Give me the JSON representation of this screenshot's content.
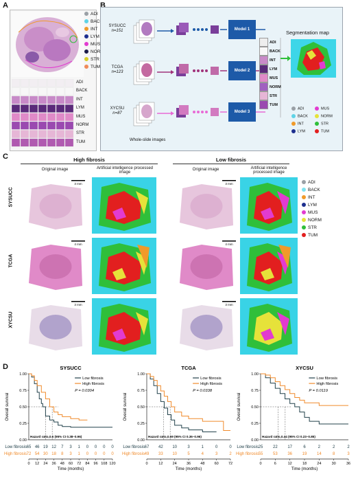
{
  "panels": {
    "a": "A",
    "b": "B",
    "c": "C",
    "d": "D"
  },
  "panelA": {
    "legend": [
      {
        "label": "ADI",
        "color": "#9aa0a6"
      },
      {
        "label": "BACK",
        "color": "#5fd3e6"
      },
      {
        "label": "INT",
        "color": "#f09a2a"
      },
      {
        "label": "LYM",
        "color": "#1d2f8f"
      },
      {
        "label": "MUS",
        "color": "#e23bd0"
      },
      {
        "label": "NORM",
        "color": "#1d1d4a"
      },
      {
        "label": "STR",
        "color": "#d9cf2a"
      },
      {
        "label": "TUM",
        "color": "#f08a5a"
      }
    ],
    "tile_labels": [
      "ADI",
      "BACK",
      "INT",
      "LYM",
      "MUS",
      "NORM",
      "STR",
      "TUM"
    ]
  },
  "panelB": {
    "cohorts": [
      {
        "name": "SYSUCC",
        "n": "n=151",
        "model": "Model 1"
      },
      {
        "name": "TCGA",
        "n": "n=123",
        "model": "Model 2"
      },
      {
        "name": "XYCSU",
        "n": "n=87",
        "model": "Model 3"
      }
    ],
    "wsi_label": "Whole-slide images",
    "seg_title": "Segmentation map",
    "seg_tiles": [
      "ADI",
      "BACK",
      "INT",
      "LYM",
      "MUS",
      "NORM",
      "STR",
      "TUM"
    ],
    "seg_legend": [
      {
        "label": "ADI",
        "color": "#9aa0a6"
      },
      {
        "label": "MUS",
        "color": "#e23bd0"
      },
      {
        "label": "BACK",
        "color": "#5fd3e6"
      },
      {
        "label": "NORM",
        "color": "#e6e23a"
      },
      {
        "label": "INT",
        "color": "#f09a2a"
      },
      {
        "label": "STR",
        "color": "#2fbf3a"
      },
      {
        "label": "LYM",
        "color": "#1d2f8f"
      },
      {
        "label": "TUM",
        "color": "#e21f1f"
      }
    ]
  },
  "panelC": {
    "high_title": "High fibrosis",
    "low_title": "Low fibrosis",
    "orig_label": "Original image",
    "ai_label": "Artificial intelligence processed image",
    "rows": [
      {
        "name": "SYSUCC",
        "scale_high": "3 mm",
        "scale_low": "3 mm"
      },
      {
        "name": "TCGA",
        "scale_high": "4 mm",
        "scale_low": "4 mm"
      },
      {
        "name": "XYCSU",
        "scale_high": "3 mm",
        "scale_low": "3 mm"
      }
    ],
    "legend": [
      {
        "label": "ADI",
        "color": "#9aa0a6"
      },
      {
        "label": "BACK",
        "color": "#7fe3f0"
      },
      {
        "label": "INT",
        "color": "#f09a2a"
      },
      {
        "label": "LYM",
        "color": "#1d2f8f"
      },
      {
        "label": "MUS",
        "color": "#e23bd0"
      },
      {
        "label": "NORM",
        "color": "#e6e23a"
      },
      {
        "label": "STR",
        "color": "#2fbf3a"
      },
      {
        "label": "TUM",
        "color": "#e21f1f"
      }
    ]
  },
  "chart_data": [
    {
      "type": "line",
      "title": "SYSUCC",
      "ylabel": "Overall survival",
      "xlabel": "Time (months)",
      "ylim": [
        0,
        1
      ],
      "xlim": [
        0,
        120
      ],
      "xticks": [
        "0",
        "12",
        "24",
        "36",
        "48",
        "60",
        "72",
        "84",
        "96",
        "108",
        "120"
      ],
      "yticks": [
        "0.00",
        "0.25",
        "0.50",
        "0.75",
        "1.00"
      ],
      "legend": [
        "Low fibrosis",
        "High fibrosis"
      ],
      "pvalue": "P = 0.0304",
      "hr": "Hazard ratio,0.6 (95% CI 0.38–0.96)",
      "series": [
        {
          "name": "Low fibrosis",
          "color": "#21404a",
          "x": [
            0,
            4,
            8,
            12,
            15,
            18,
            20,
            24,
            30,
            36,
            42,
            48,
            60,
            72,
            84,
            120
          ],
          "y": [
            1,
            0.95,
            0.85,
            0.72,
            0.62,
            0.55,
            0.5,
            0.36,
            0.3,
            0.27,
            0.22,
            0.2,
            0.19,
            0.19,
            0.19,
            0.19
          ]
        },
        {
          "name": "High fibrosis",
          "color": "#f08a2a",
          "x": [
            0,
            4,
            8,
            12,
            18,
            24,
            30,
            36,
            42,
            48,
            60,
            72,
            84
          ],
          "y": [
            1,
            0.97,
            0.9,
            0.82,
            0.72,
            0.62,
            0.5,
            0.42,
            0.38,
            0.35,
            0.32,
            0.3,
            0.3
          ]
        }
      ],
      "risk_rows": [
        {
          "label": "Low fibrosis",
          "values": [
            "65",
            "46",
            "19",
            "12",
            "7",
            "3",
            "1",
            "0",
            "0",
            "0",
            "0"
          ]
        },
        {
          "label": "High fibrosis",
          "values": [
            "72",
            "54",
            "30",
            "18",
            "8",
            "3",
            "1",
            "0",
            "0",
            "0",
            "0"
          ]
        }
      ]
    },
    {
      "type": "line",
      "title": "TCGA",
      "ylabel": "Overall survival",
      "xlabel": "Time (months)",
      "ylim": [
        0,
        1
      ],
      "xlim": [
        0,
        72
      ],
      "xticks": [
        "0",
        "12",
        "24",
        "36",
        "48",
        "60",
        "72"
      ],
      "yticks": [
        "0.00",
        "0.25",
        "0.50",
        "0.75",
        "1.00"
      ],
      "legend": [
        "Low fibrosis",
        "High fibrosis"
      ],
      "pvalue": "P = 0.0338",
      "hr": "Hazard ratio,0.59 (95% CI 0.36–0.96)",
      "series": [
        {
          "name": "Low fibrosis",
          "color": "#21404a",
          "x": [
            0,
            3,
            6,
            9,
            12,
            15,
            18,
            21,
            24,
            30,
            36,
            48,
            60
          ],
          "y": [
            1,
            0.92,
            0.82,
            0.7,
            0.58,
            0.48,
            0.38,
            0.3,
            0.22,
            0.18,
            0.15,
            0.12,
            0.12
          ]
        },
        {
          "name": "High fibrosis",
          "color": "#f08a2a",
          "x": [
            0,
            3,
            6,
            9,
            12,
            15,
            18,
            21,
            24,
            30,
            36,
            48,
            60,
            66,
            72
          ],
          "y": [
            1,
            0.96,
            0.9,
            0.82,
            0.74,
            0.66,
            0.58,
            0.5,
            0.42,
            0.36,
            0.32,
            0.28,
            0.28,
            0.14,
            0.14
          ]
        }
      ],
      "risk_rows": [
        {
          "label": "Low fibrosis",
          "values": [
            "67",
            "42",
            "10",
            "3",
            "1",
            "0",
            "0"
          ]
        },
        {
          "label": "High fibrosis",
          "values": [
            "49",
            "33",
            "10",
            "5",
            "4",
            "3",
            "2"
          ]
        }
      ]
    },
    {
      "type": "line",
      "title": "XYCSU",
      "ylabel": "Overall survival",
      "xlabel": "Time (months)",
      "ylim": [
        0,
        1
      ],
      "xlim": [
        0,
        36
      ],
      "xticks": [
        "0",
        "6",
        "12",
        "18",
        "24",
        "30",
        "36"
      ],
      "yticks": [
        "0.00",
        "0.25",
        "0.50",
        "0.75",
        "1.00"
      ],
      "legend": [
        "Low fibrosis",
        "High fibrosis"
      ],
      "pvalue": "P = 0.0119",
      "hr": "Hazard ratio,0.44 (95% CI 0.23–0.85)",
      "series": [
        {
          "name": "Low fibrosis",
          "color": "#21404a",
          "x": [
            0,
            2,
            4,
            6,
            8,
            10,
            12,
            14,
            16,
            18,
            20,
            24,
            30,
            36
          ],
          "y": [
            1,
            0.94,
            0.86,
            0.78,
            0.7,
            0.62,
            0.55,
            0.5,
            0.42,
            0.34,
            0.28,
            0.24,
            0.24,
            0.24
          ]
        },
        {
          "name": "High fibrosis",
          "color": "#f08a2a",
          "x": [
            0,
            2,
            4,
            6,
            8,
            10,
            12,
            14,
            16,
            18,
            24,
            30,
            36
          ],
          "y": [
            1,
            0.98,
            0.94,
            0.88,
            0.82,
            0.76,
            0.7,
            0.64,
            0.6,
            0.56,
            0.52,
            0.52,
            0.52
          ]
        }
      ],
      "risk_rows": [
        {
          "label": "Low fibrosis",
          "values": [
            "25",
            "22",
            "17",
            "6",
            "2",
            "2",
            "2"
          ]
        },
        {
          "label": "High fibrosis",
          "values": [
            "55",
            "53",
            "36",
            "19",
            "14",
            "8",
            "3"
          ]
        }
      ]
    }
  ]
}
